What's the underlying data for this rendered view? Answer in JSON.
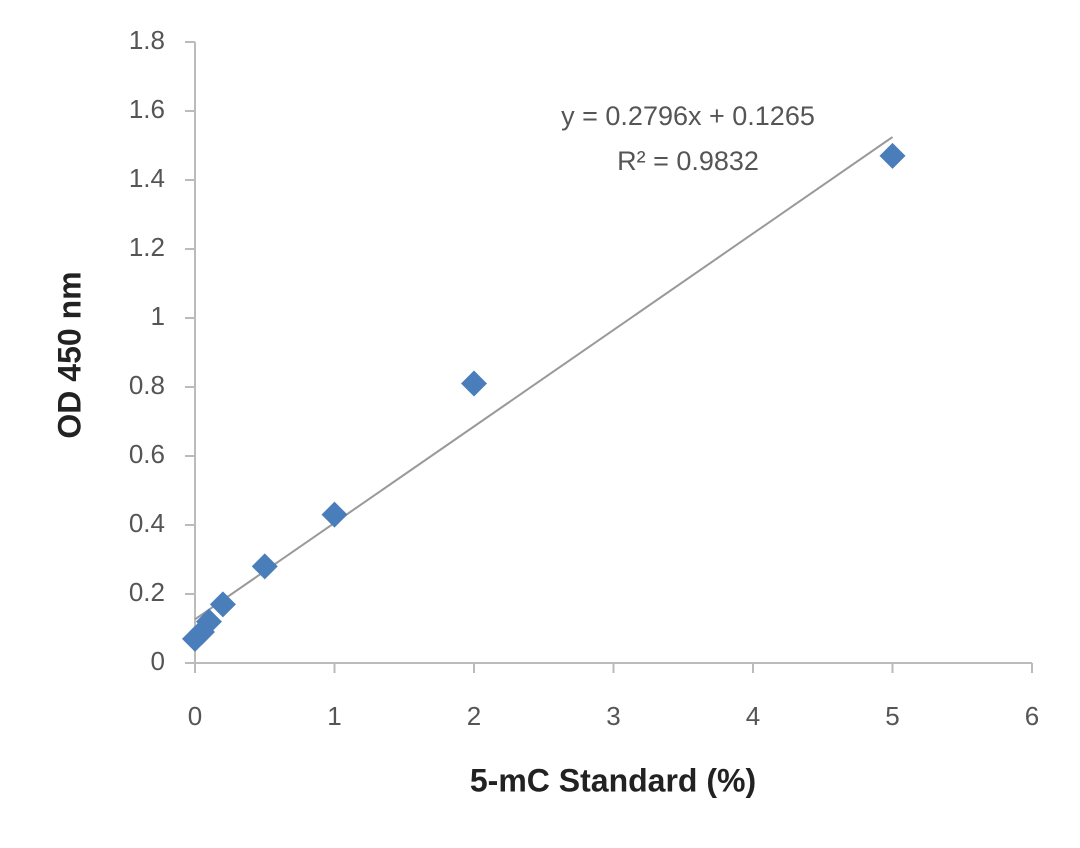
{
  "chart_data": {
    "type": "scatter",
    "y_label": "OD 450 nm",
    "x_label": "5-mC Standard  (%)",
    "x": [
      0,
      0.05,
      0.1,
      0.2,
      0.5,
      1,
      2,
      5
    ],
    "series": [
      {
        "color": "#4a7ebb",
        "values": [
          0.07,
          0.09,
          0.12,
          0.17,
          0.28,
          0.43,
          0.81,
          1.47
        ]
      }
    ],
    "trendline": {
      "slope": 0.2796,
      "intercept": 0.1265,
      "color": "#999999",
      "equation": "y = 0.2796x + 0.1265",
      "r_squared": "R² = 0.9832"
    },
    "xlim": [
      0,
      6
    ],
    "xticks": [
      0,
      1,
      2,
      3,
      4,
      5,
      6
    ],
    "ylim": [
      0,
      1.8
    ],
    "yticks": [
      0,
      0.2,
      0.4,
      0.6,
      0.8,
      1,
      1.2,
      1.4,
      1.6,
      1.8
    ],
    "grid": false
  }
}
